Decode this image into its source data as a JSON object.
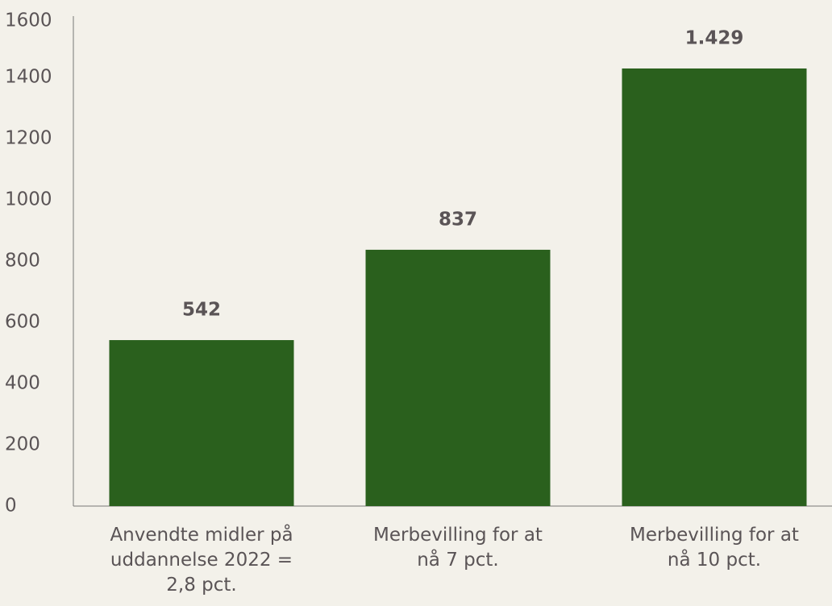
{
  "chart_data": {
    "type": "bar",
    "categories": [
      "Anvendte midler på uddannelse 2022 = 2,8 pct.",
      "Merbevilling for at nå 7 pct.",
      "Merbevilling for at nå 10 pct."
    ],
    "values": [
      542,
      837,
      1429
    ],
    "value_labels": [
      "542",
      "837",
      "1.429"
    ],
    "color": "#2a601d",
    "ylim": [
      0,
      1600
    ],
    "yticks": [
      0,
      200,
      400,
      600,
      800,
      1000,
      1200,
      1400,
      1600
    ],
    "grid": false
  }
}
